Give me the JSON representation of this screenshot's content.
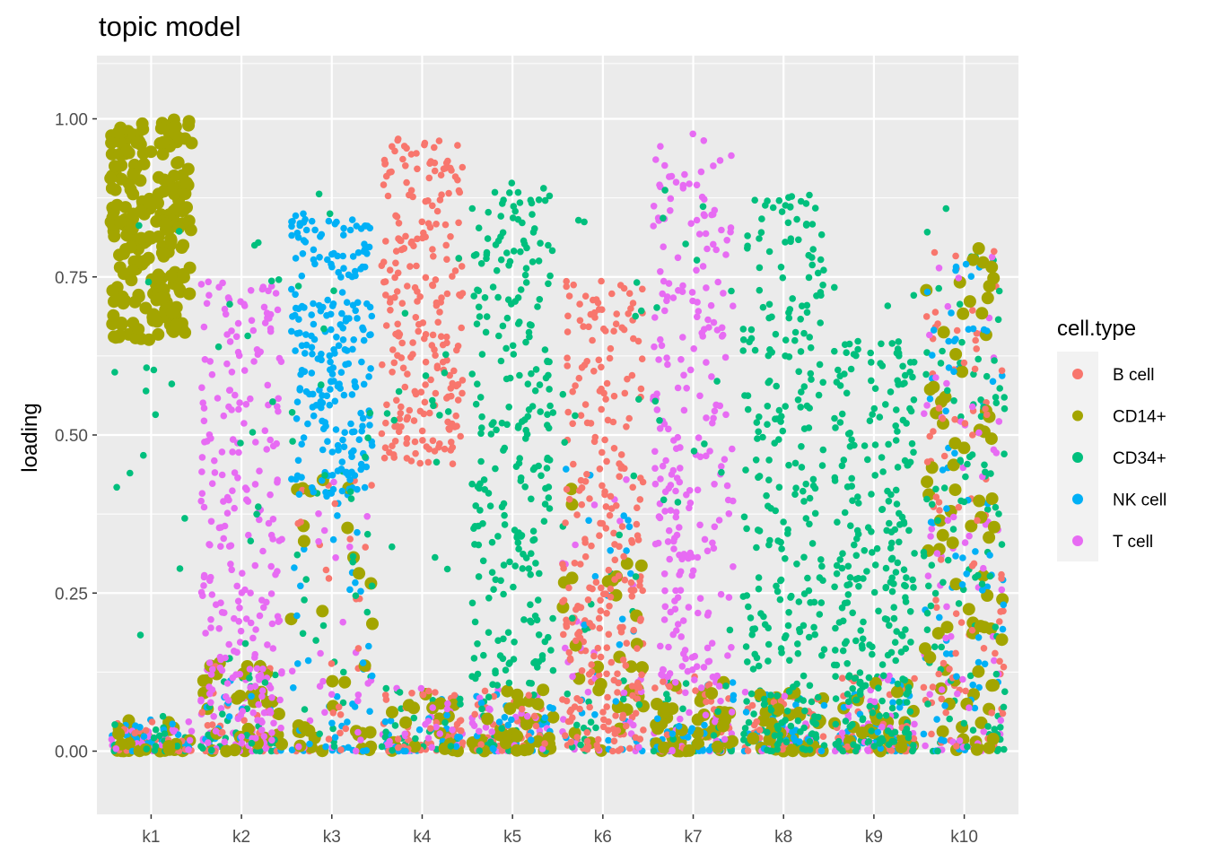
{
  "chart_data": {
    "type": "scatter",
    "title": "topic model",
    "xlabel": "",
    "ylabel": "loading",
    "categories": [
      "k1",
      "k2",
      "k3",
      "k4",
      "k5",
      "k6",
      "k7",
      "k8",
      "k9",
      "k10"
    ],
    "ylim": [
      -0.1,
      1.1
    ],
    "y_ticks": [
      0.0,
      0.25,
      0.5,
      0.75,
      1.0
    ],
    "y_tick_labels": [
      "0.00",
      "0.25",
      "0.50",
      "0.75",
      "1.00"
    ],
    "grid": true,
    "panel_background": "#ebebeb",
    "jitter": true,
    "legend": {
      "title": "cell.type",
      "placement": "right",
      "entries": [
        {
          "name": "B cell",
          "color": "#F8766D"
        },
        {
          "name": "CD14+",
          "color": "#A3A500"
        },
        {
          "name": "CD34+",
          "color": "#00BF7D"
        },
        {
          "name": "NK cell",
          "color": "#00B0F6"
        },
        {
          "name": "T cell",
          "color": "#E76BF3"
        }
      ]
    },
    "series_summary": [
      {
        "category": "k1",
        "dominant": "CD14+",
        "dominant_range": [
          0.65,
          1.0
        ],
        "other_range": [
          0.0,
          0.05
        ]
      },
      {
        "category": "k2",
        "dominant": "T cell",
        "dominant_range": [
          0.0,
          0.75
        ],
        "other_range": [
          0.0,
          0.15
        ]
      },
      {
        "category": "k3",
        "dominant": "NK cell",
        "dominant_range": [
          0.4,
          0.85
        ],
        "other_range": [
          0.0,
          0.45
        ]
      },
      {
        "category": "k4",
        "dominant": "B cell",
        "dominant_range": [
          0.45,
          0.97
        ],
        "other_range": [
          0.0,
          0.1
        ]
      },
      {
        "category": "k5",
        "dominant": "CD34+",
        "dominant_range": [
          0.1,
          0.9
        ],
        "other_range": [
          0.0,
          0.1
        ]
      },
      {
        "category": "k6",
        "dominant": "B cell",
        "dominant_range": [
          0.0,
          0.75
        ],
        "other_range": [
          0.0,
          0.45
        ]
      },
      {
        "category": "k7",
        "dominant": "T cell",
        "dominant_range": [
          0.1,
          0.98
        ],
        "other_range": [
          0.0,
          0.12
        ]
      },
      {
        "category": "k8",
        "dominant": "CD34+",
        "dominant_range": [
          0.0,
          0.88
        ],
        "other_range": [
          0.0,
          0.1
        ]
      },
      {
        "category": "k9",
        "dominant": "CD34+",
        "dominant_range": [
          0.0,
          0.65
        ],
        "other_range": [
          0.0,
          0.12
        ]
      },
      {
        "category": "k10",
        "dominant": "mixed",
        "dominant_range": [
          0.0,
          0.8
        ],
        "other_range": [
          0.0,
          0.8
        ]
      }
    ]
  }
}
